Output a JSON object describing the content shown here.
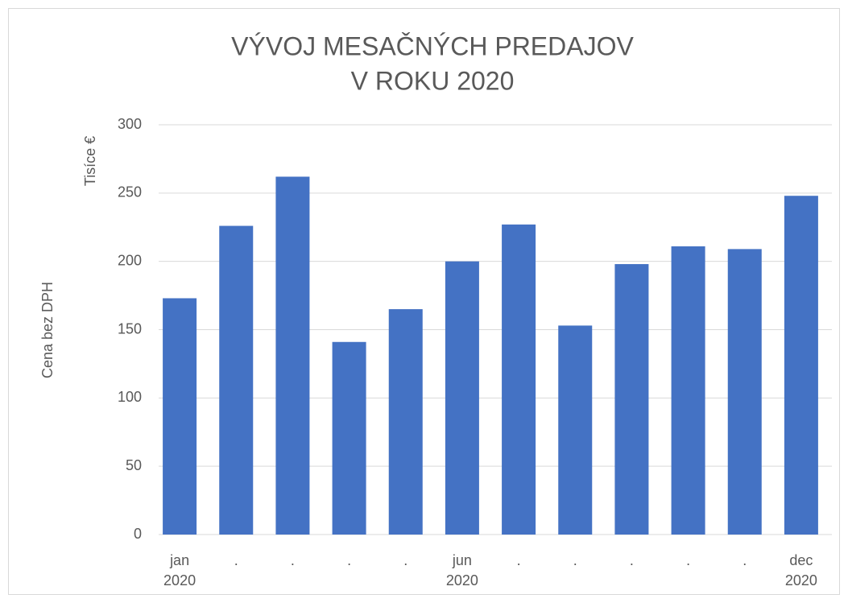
{
  "chart_data": {
    "type": "bar",
    "title": [
      "VÝVOJ MESAČNÝCH PREDAJOV",
      "V ROKU 2020"
    ],
    "y_label": "Cena bez DPH",
    "y_units_label": "Tisíce €",
    "categories": [
      [
        "jan",
        "2020"
      ],
      [
        "."
      ],
      [
        "."
      ],
      [
        "."
      ],
      [
        "."
      ],
      [
        "jun",
        "2020"
      ],
      [
        "."
      ],
      [
        "."
      ],
      [
        "."
      ],
      [
        "."
      ],
      [
        "."
      ],
      [
        "dec",
        "2020"
      ]
    ],
    "values": [
      173,
      226,
      262,
      141,
      165,
      200,
      227,
      153,
      198,
      211,
      209,
      248
    ],
    "color": "#4472c4",
    "ylim": [
      0,
      300
    ],
    "yticks": [
      0,
      50,
      100,
      150,
      200,
      250,
      300
    ],
    "grid": true
  }
}
